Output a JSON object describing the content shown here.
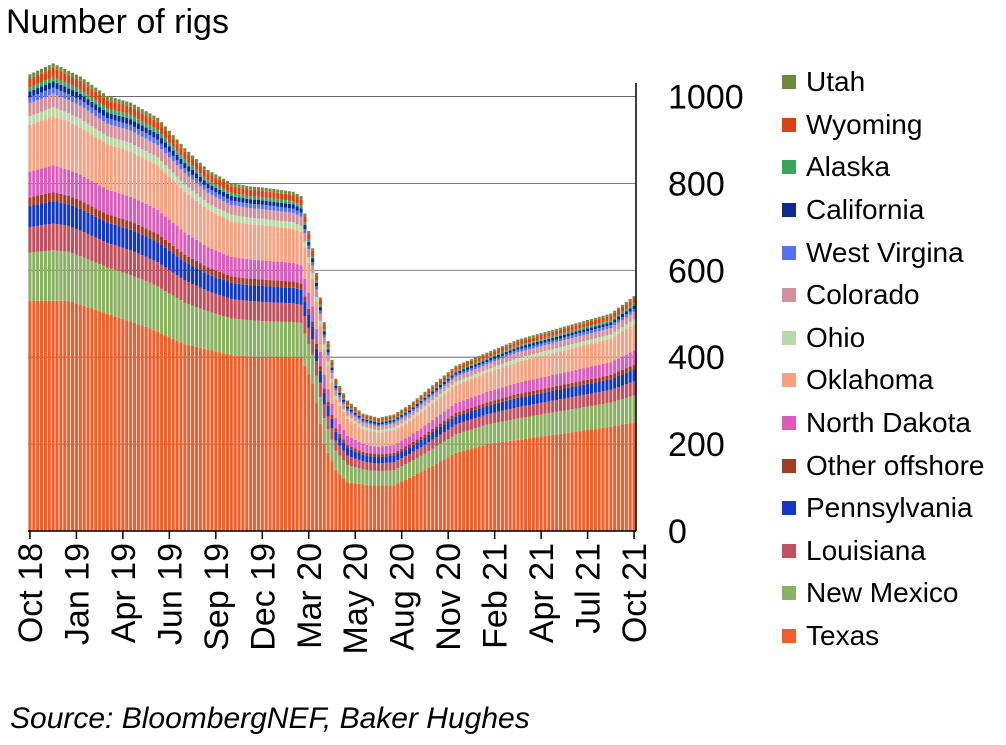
{
  "chart_data": {
    "type": "bar",
    "stacked": true,
    "title": "Number of rigs",
    "source": "Source: BloombergNEF, Baker Hughes",
    "ylim": [
      0,
      1100
    ],
    "yticks": [
      0,
      200,
      400,
      600,
      800,
      1000
    ],
    "grid": true,
    "xtick_labels": [
      "Oct 18",
      "Jan 19",
      "Apr 19",
      "Jun 19",
      "Sep 19",
      "Dec 19",
      "Mar 20",
      "May 20",
      "Aug 20",
      "Nov 20",
      "Feb 21",
      "Apr 21",
      "Jul 21",
      "Oct 21"
    ],
    "x_frequency": "weekly",
    "x_count": 157,
    "total_rigs_anchors": [
      [
        0,
        1050
      ],
      [
        6,
        1075
      ],
      [
        13,
        1045
      ],
      [
        20,
        1000
      ],
      [
        26,
        985
      ],
      [
        33,
        950
      ],
      [
        40,
        880
      ],
      [
        46,
        830
      ],
      [
        52,
        800
      ],
      [
        57,
        792
      ],
      [
        60,
        790
      ],
      [
        68,
        780
      ],
      [
        70,
        770
      ],
      [
        73,
        650
      ],
      [
        76,
        480
      ],
      [
        79,
        350
      ],
      [
        82,
        300
      ],
      [
        86,
        270
      ],
      [
        90,
        260
      ],
      [
        94,
        268
      ],
      [
        98,
        290
      ],
      [
        102,
        320
      ],
      [
        110,
        380
      ],
      [
        118,
        410
      ],
      [
        126,
        440
      ],
      [
        134,
        460
      ],
      [
        142,
        480
      ],
      [
        150,
        500
      ],
      [
        156,
        540
      ]
    ],
    "texas_rigs_anchors": [
      [
        0,
        530
      ],
      [
        10,
        530
      ],
      [
        20,
        500
      ],
      [
        30,
        470
      ],
      [
        40,
        430
      ],
      [
        52,
        405
      ],
      [
        60,
        400
      ],
      [
        70,
        400
      ],
      [
        73,
        340
      ],
      [
        76,
        200
      ],
      [
        79,
        140
      ],
      [
        82,
        112
      ],
      [
        88,
        105
      ],
      [
        94,
        105
      ],
      [
        102,
        140
      ],
      [
        110,
        180
      ],
      [
        118,
        200
      ],
      [
        126,
        210
      ],
      [
        134,
        220
      ],
      [
        142,
        230
      ],
      [
        150,
        240
      ],
      [
        156,
        250
      ]
    ],
    "series": [
      {
        "name": "Utah",
        "color": "#6e8b3d",
        "share_of_non_texas": 0.019
      },
      {
        "name": "Wyoming",
        "color": "#d84315",
        "share_of_non_texas": 0.038
      },
      {
        "name": "Alaska",
        "color": "#3aa35c",
        "share_of_non_texas": 0.019
      },
      {
        "name": "California",
        "color": "#0d2b8f",
        "share_of_non_texas": 0.026
      },
      {
        "name": "West Virgina",
        "color": "#5571ee",
        "share_of_non_texas": 0.026
      },
      {
        "name": "Colorado",
        "color": "#d4909a",
        "share_of_non_texas": 0.057
      },
      {
        "name": "Ohio",
        "color": "#b8d8a8",
        "share_of_non_texas": 0.038
      },
      {
        "name": "Oklahoma",
        "color": "#f6a282",
        "share_of_non_texas": 0.208
      },
      {
        "name": "North Dakota",
        "color": "#dc5cbb",
        "share_of_non_texas": 0.113
      },
      {
        "name": "Other offshore",
        "color": "#a03c24",
        "share_of_non_texas": 0.038
      },
      {
        "name": "Pennsylvania",
        "color": "#1238c0",
        "share_of_non_texas": 0.094
      },
      {
        "name": "Louisiana",
        "color": "#c0505e",
        "share_of_non_texas": 0.113
      },
      {
        "name": "New Mexico",
        "color": "#8ab062",
        "share_of_non_texas": 0.213
      },
      {
        "name": "Texas",
        "color": "#f05f2a",
        "share_of_non_texas": 0
      }
    ]
  }
}
